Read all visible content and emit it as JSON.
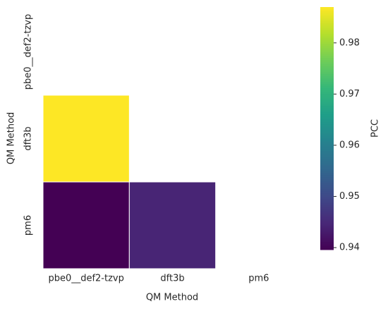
{
  "chart_data": {
    "type": "heatmap",
    "x_label": "QM Method",
    "y_label": "QM Method",
    "x_categories": [
      "pbe0__def2-tzvp",
      "dft3b",
      "pm6"
    ],
    "y_categories": [
      "pbe0__def2-tzvp",
      "dft3b",
      "pm6"
    ],
    "values": [
      [
        null,
        null,
        null
      ],
      [
        0.987,
        null,
        null
      ],
      [
        0.9396,
        0.9445,
        null
      ]
    ],
    "colormap": "viridis",
    "colorbar_label": "PCC",
    "clim": [
      0.9396,
      0.987
    ],
    "cticks": [
      0.94,
      0.95,
      0.96,
      0.97,
      0.98
    ]
  }
}
